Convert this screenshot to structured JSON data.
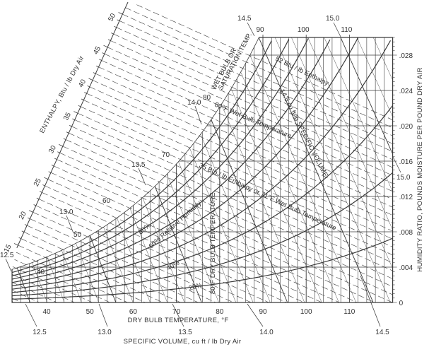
{
  "chart_data": {
    "type": "psychrometric",
    "xlabel": "DRY BULB TEMPERATURE, °F",
    "ylabel": "HUMIDITY RATIO, POUNDS MOISTURE PER POUND DRY AIR",
    "enthalpy_label": "ENTHALPY, Btu / lb Dry Air",
    "volume_label": "SPECIFIC VOLUME, cu ft / lb Dry Air",
    "xlim": [
      32,
      120
    ],
    "ylim": [
      0,
      0.03
    ],
    "grid": true,
    "x_ticks": [
      {
        "value": 40,
        "label": "40"
      },
      {
        "value": 50,
        "label": "50"
      },
      {
        "value": 60,
        "label": "60"
      },
      {
        "value": 70,
        "label": "70"
      },
      {
        "value": 80,
        "label": "80"
      },
      {
        "value": 90,
        "label": "90"
      },
      {
        "value": 100,
        "label": "100"
      },
      {
        "value": 110,
        "label": "110"
      }
    ],
    "top_ticks": [
      {
        "value": 90,
        "label": "90"
      },
      {
        "value": 100,
        "label": "100"
      },
      {
        "value": 110,
        "label": "110"
      }
    ],
    "y_ticks": [
      {
        "value": 0,
        "label": "0"
      },
      {
        "value": 0.004,
        "label": ".004"
      },
      {
        "value": 0.008,
        "label": ".008"
      },
      {
        "value": 0.012,
        "label": ".012"
      },
      {
        "value": 0.016,
        "label": ".016"
      },
      {
        "value": 0.02,
        "label": ".020"
      },
      {
        "value": 0.024,
        "label": ".024"
      },
      {
        "value": 0.028,
        "label": ".028"
      }
    ],
    "enthalpy_range": [
      15,
      50
    ],
    "enthalpy_ticks": [
      {
        "value": 15,
        "label": "15"
      },
      {
        "value": 20,
        "label": "20"
      },
      {
        "value": 25,
        "label": "25"
      },
      {
        "value": 30,
        "label": "30"
      },
      {
        "value": 35,
        "label": "35"
      },
      {
        "value": 40,
        "label": "40"
      },
      {
        "value": 45,
        "label": "45"
      },
      {
        "value": 50,
        "label": "50"
      }
    ],
    "volume_lines": [
      12.5,
      13.0,
      13.5,
      14.0,
      14.5,
      15.0
    ],
    "volume_bottom_labels": [
      "12.5",
      "13.0",
      "13.5",
      "14.0",
      "14.5"
    ],
    "volume_curve_labels": {
      "v125": "12.5",
      "v130": "13.0",
      "v135": "13.5",
      "v140": "14.0",
      "v145": "14.5",
      "v150": "15.0",
      "v150_right": "15.0"
    },
    "relative_humidity_curves": [
      10,
      20,
      30,
      40,
      50,
      60,
      70,
      80,
      90,
      100
    ],
    "rh_labels": {
      "rh80": "80%",
      "rh60": "60% Relative Humidity",
      "rh40": "40%",
      "rh20": "20%"
    },
    "saturation_temp_labels": [
      "40",
      "50",
      "60",
      "70",
      "80"
    ],
    "annotations": {
      "wb_line1": "WET BULB OR",
      "wb_line2": "SATURATION TEMP.",
      "enthalpy_52": "52 Btu / lb Enthalpy",
      "wet_bulb_80": "80°F Wet Bulb Temperature",
      "volume_145": "14.5 cu ft/lb SPECIFIC VOLUME",
      "enthalpy_35": "35 Btu / lb Enthalpy or 71°F Wet Bulb Temperature",
      "dry_bulb_80": "80°F DRY BULB TEMPERATURE"
    },
    "colors": {
      "line": "#3a3a3a",
      "text": "#333333",
      "background": "#ffffff"
    }
  }
}
